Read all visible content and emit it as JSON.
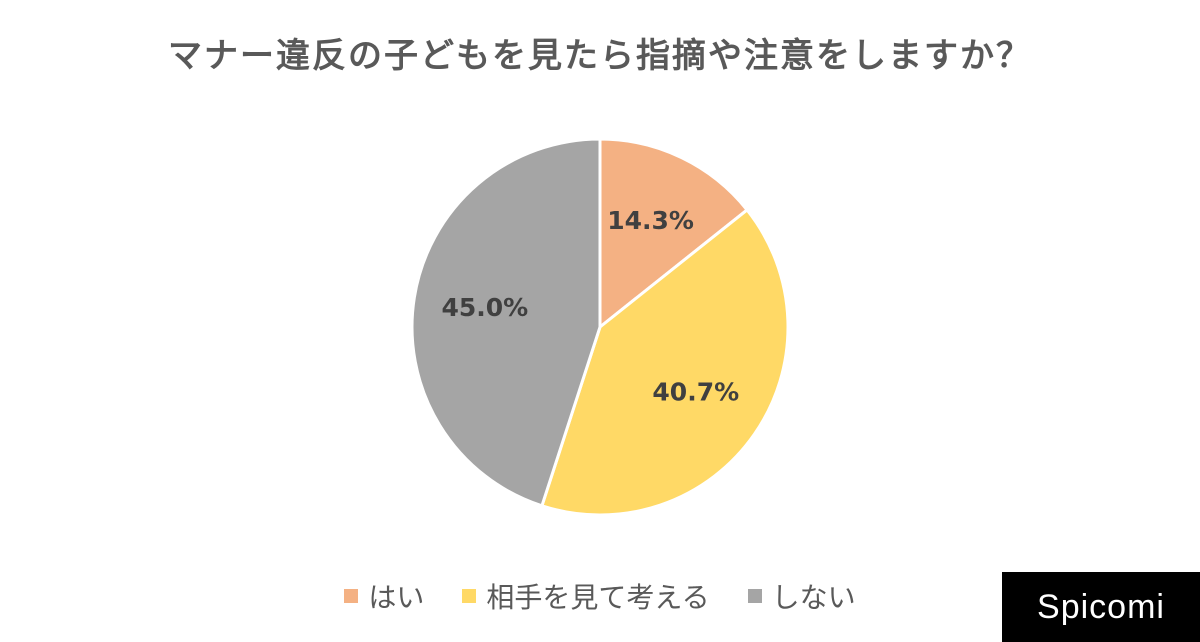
{
  "chart_data": {
    "type": "pie",
    "title": "マナー違反の子どもを見たら指摘や注意をしますか？",
    "categories": [
      "はい",
      "相手を見て考える",
      "しない"
    ],
    "values": [
      14.3,
      40.7,
      45.0
    ],
    "labels": [
      "14.3%",
      "40.7%",
      "45.0%"
    ],
    "colors": [
      "#F4B183",
      "#FFD966",
      "#A5A5A5"
    ],
    "legend_position": "bottom",
    "start_angle": "top, clockwise"
  },
  "brand": {
    "name": "Spicomi"
  }
}
